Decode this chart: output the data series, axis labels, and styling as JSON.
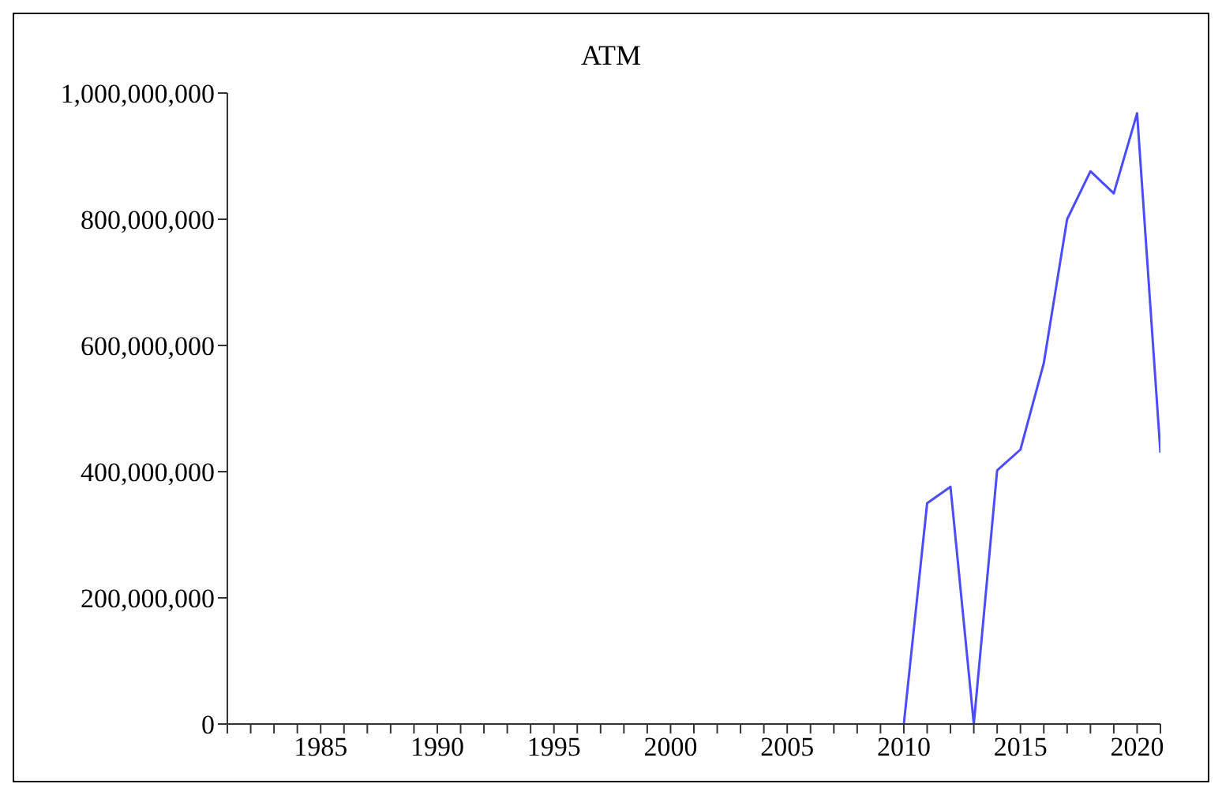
{
  "chart_data": {
    "type": "line",
    "title": "ATM",
    "x": [
      2010,
      2011,
      2012,
      2013,
      2014,
      2015,
      2016,
      2017,
      2018,
      2019,
      2020,
      2021
    ],
    "series": [
      {
        "color": "#4c4cff",
        "values": [
          0,
          350000000,
          376000000,
          0,
          402000000,
          435000000,
          572000000,
          800000000,
          876000000,
          841000000,
          968000000,
          430000000
        ]
      }
    ],
    "xlim": [
      1981,
      2021
    ],
    "xticks": [
      {
        "value": 1981,
        "label": null
      },
      {
        "value": 1982,
        "label": null
      },
      {
        "value": 1983,
        "label": null
      },
      {
        "value": 1984,
        "label": null
      },
      1985,
      {
        "value": 1986,
        "label": null
      },
      {
        "value": 1987,
        "label": null
      },
      {
        "value": 1988,
        "label": null
      },
      {
        "value": 1989,
        "label": null
      },
      1990,
      {
        "value": 1991,
        "label": null
      },
      {
        "value": 1992,
        "label": null
      },
      {
        "value": 1993,
        "label": null
      },
      {
        "value": 1994,
        "label": null
      },
      1995,
      {
        "value": 1996,
        "label": null
      },
      {
        "value": 1997,
        "label": null
      },
      {
        "value": 1998,
        "label": null
      },
      {
        "value": 1999,
        "label": null
      },
      2000,
      {
        "value": 2001,
        "label": null
      },
      {
        "value": 2002,
        "label": null
      },
      {
        "value": 2003,
        "label": null
      },
      {
        "value": 2004,
        "label": null
      },
      2005,
      {
        "value": 2006,
        "label": null
      },
      {
        "value": 2007,
        "label": null
      },
      {
        "value": 2008,
        "label": null
      },
      {
        "value": 2009,
        "label": null
      },
      2010,
      {
        "value": 2011,
        "label": null
      },
      {
        "value": 2012,
        "label": null
      },
      {
        "value": 2013,
        "label": null
      },
      {
        "value": 2014,
        "label": null
      },
      2015,
      {
        "value": 2016,
        "label": null
      },
      {
        "value": 2017,
        "label": null
      },
      {
        "value": 2018,
        "label": null
      },
      {
        "value": 2019,
        "label": null
      },
      2020,
      {
        "value": 2021,
        "label": null
      }
    ],
    "ylim": [
      0,
      1000000000
    ],
    "yticks": [
      0,
      {
        "value": 200000000,
        "label": "200,000,000"
      },
      {
        "value": 400000000,
        "label": "400,000,000"
      },
      {
        "value": 600000000,
        "label": "600,000,000"
      },
      {
        "value": 800000000,
        "label": "800,000,000"
      },
      {
        "value": 1000000000,
        "label": "1,000,000,000"
      }
    ],
    "grid": false,
    "legend": false,
    "marker": "none",
    "line_style": "solid"
  }
}
